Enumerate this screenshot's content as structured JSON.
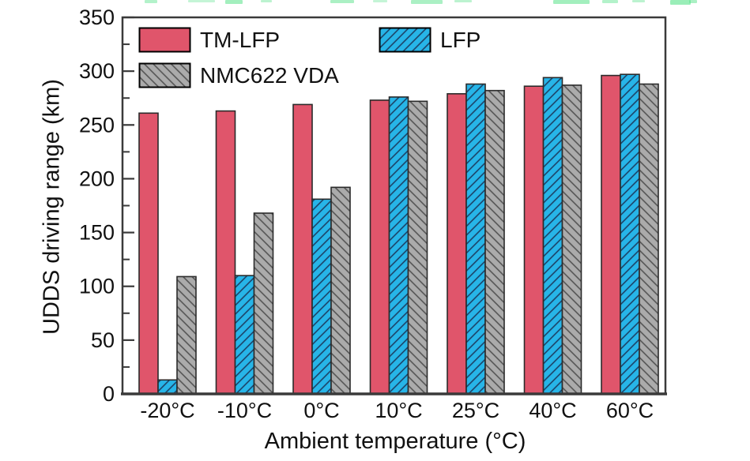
{
  "chart_data": {
    "type": "bar",
    "title": "",
    "xlabel": "Ambient temperature (°C)",
    "ylabel": "UDDS driving range (km)",
    "categories": [
      "-20°C",
      "-10°C",
      "0°C",
      "10°C",
      "25°C",
      "40°C",
      "60°C"
    ],
    "series": [
      {
        "name": "TM-LFP",
        "color": "#e0556b",
        "hatch": "none",
        "values": [
          261,
          263,
          269,
          273,
          279,
          286,
          296
        ]
      },
      {
        "name": "LFP",
        "color": "#27b5e8",
        "hatch": "forward-diagonal",
        "values": [
          13,
          110,
          181,
          276,
          288,
          294,
          297
        ]
      },
      {
        "name": "NMC622 VDA",
        "color": "#ababab",
        "hatch": "backward-diagonal",
        "values": [
          109,
          168,
          192,
          272,
          282,
          287,
          288
        ]
      }
    ],
    "ylim": [
      0,
      350
    ],
    "y_major_ticks": [
      0,
      50,
      100,
      150,
      200,
      250,
      300,
      350
    ],
    "y_minor_step": 25,
    "grid": false,
    "legend_position": "top-left-inside"
  },
  "colors": {
    "axis": "#3a3a3a",
    "text": "#111111",
    "bar_border": "#2b2b2b",
    "hatch_on_cyan": "#1c3a5e",
    "hatch_on_gray": "#4f4f4f",
    "legend_swatch_border": "#000000",
    "background": "#ffffff",
    "top_artifact_green": "#57e289"
  }
}
